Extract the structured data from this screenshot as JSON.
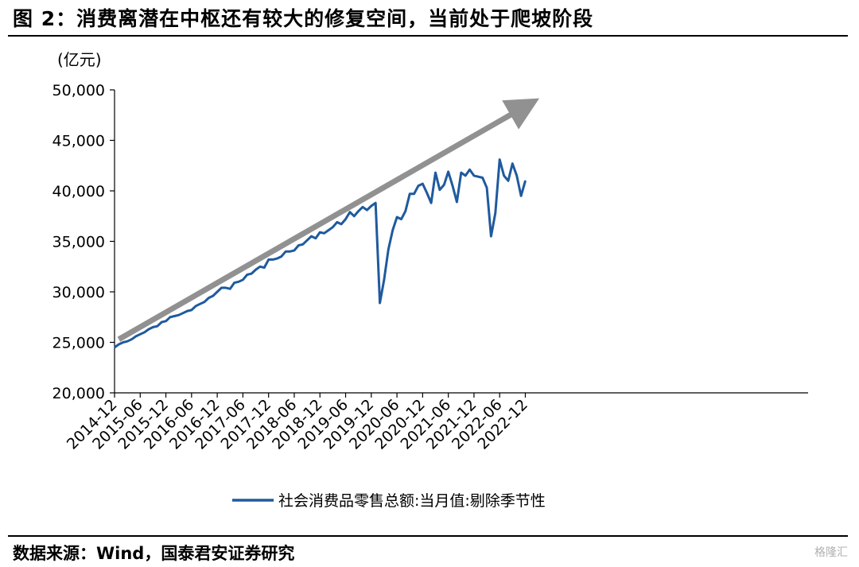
{
  "header": {
    "title": "图 2：消费离潜在中枢还有较大的修复空间，当前处于爬坡阶段"
  },
  "footer": {
    "source": "数据来源：Wind，国泰君安证券研究",
    "watermark": "格隆汇"
  },
  "colors": {
    "series": "#1f5a9e",
    "arrow": "#8c8c8c",
    "axis": "#000000"
  },
  "chart_data": {
    "type": "line",
    "title": "",
    "ylabel": "(亿元)",
    "xlabel": "",
    "ylim": [
      20000,
      50000
    ],
    "y_ticks": [
      20000,
      25000,
      30000,
      35000,
      40000,
      45000,
      50000
    ],
    "y_tick_labels": [
      "20,000",
      "25,000",
      "30,000",
      "35,000",
      "40,000",
      "45,000",
      "50,000"
    ],
    "x_tick_labels": [
      "2014-12",
      "2015-06",
      "2015-12",
      "2016-06",
      "2016-12",
      "2017-06",
      "2017-12",
      "2018-06",
      "2018-12",
      "2019-06",
      "2019-12",
      "2020-06",
      "2020-12",
      "2021-06",
      "2021-12",
      "2022-06",
      "2022-12"
    ],
    "x_start": "2014-12",
    "legend": {
      "position": "bottom"
    },
    "grid": false,
    "series": [
      {
        "name": "社会消费品零售总额:当月值:剔除季节性",
        "values": [
          24500,
          24800,
          25000,
          25100,
          25300,
          25600,
          25800,
          26000,
          26300,
          26500,
          26600,
          27000,
          27100,
          27500,
          27600,
          27700,
          27900,
          28100,
          28200,
          28600,
          28800,
          29000,
          29400,
          29600,
          30000,
          30400,
          30400,
          30300,
          30900,
          31000,
          31200,
          31700,
          31800,
          32200,
          32500,
          32400,
          33200,
          33200,
          33300,
          33500,
          34000,
          34000,
          34100,
          34600,
          34700,
          35100,
          35500,
          35300,
          35900,
          35800,
          36100,
          36400,
          36900,
          36700,
          37200,
          37900,
          37500,
          38000,
          38400,
          38100,
          38500,
          38800,
          28900,
          31200,
          34200,
          36100,
          37400,
          37200,
          38000,
          39700,
          39700,
          40500,
          40700,
          39800,
          38800,
          41800,
          40100,
          40600,
          41900,
          40500,
          38900,
          41800,
          41500,
          42100,
          41500,
          41400,
          41300,
          40300,
          35500,
          37800,
          43100,
          41500,
          41000,
          42700,
          41500,
          39500,
          41000
        ]
      }
    ],
    "annotations": [
      {
        "type": "trend-arrow",
        "from": {
          "x": "2015-01",
          "y": 25300
        },
        "to": {
          "x": "2023-01",
          "y": 48500
        }
      }
    ]
  }
}
